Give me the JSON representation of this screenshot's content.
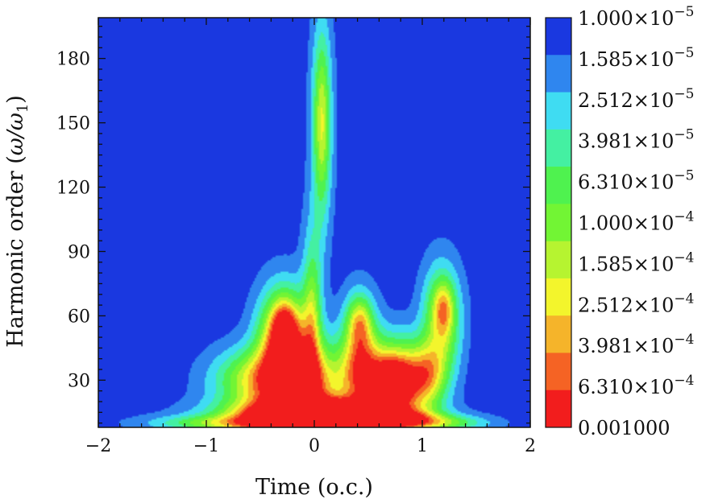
{
  "chart_data": {
    "type": "heatmap",
    "title": "",
    "xlabel": "Time (o.c.)",
    "ylabel_main": "Harmonic order (",
    "ylabel_math": "ω/ω",
    "ylabel_sub": "1",
    "ylabel_close": ")",
    "xlim": [
      -2,
      2
    ],
    "ylim": [
      8,
      199
    ],
    "x_ticks": [
      -2,
      -1,
      0,
      1,
      2
    ],
    "x_tick_labels": [
      "−2",
      "−1",
      "0",
      "1",
      "2"
    ],
    "y_ticks": [
      30,
      60,
      90,
      120,
      150,
      180
    ],
    "y_tick_labels": [
      "30",
      "60",
      "90",
      "120",
      "150",
      "180"
    ],
    "background_level": "1.000×10^-5",
    "colorbar": {
      "placement": "right",
      "levels": [
        {
          "mantissa": "1.000",
          "times": "×10",
          "exp": "−5",
          "color": "#1a38e0"
        },
        {
          "mantissa": "1.585",
          "times": "×10",
          "exp": "−5",
          "color": "#2f86ef"
        },
        {
          "mantissa": "2.512",
          "times": "×10",
          "exp": "−5",
          "color": "#3fdcf2"
        },
        {
          "mantissa": "3.981",
          "times": "×10",
          "exp": "−5",
          "color": "#44f0a2"
        },
        {
          "mantissa": "6.310",
          "times": "×10",
          "exp": "−5",
          "color": "#4ff24f"
        },
        {
          "mantissa": "1.000",
          "times": "×10",
          "exp": "−4",
          "color": "#72f534"
        },
        {
          "mantissa": "1.585",
          "times": "×10",
          "exp": "−4",
          "color": "#b6f430"
        },
        {
          "mantissa": "2.512",
          "times": "×10",
          "exp": "−4",
          "color": "#f3f52c"
        },
        {
          "mantissa": "3.981",
          "times": "×10",
          "exp": "−4",
          "color": "#f5b42a"
        },
        {
          "mantissa": "6.310",
          "times": "×10",
          "exp": "−4",
          "color": "#f56324"
        },
        {
          "mantissa": "0.001000",
          "times": "",
          "exp": "",
          "color": "#f21d1d"
        }
      ]
    },
    "features": [
      {
        "x": 0.07,
        "y": 150,
        "sx": 0.07,
        "sy": 34,
        "level": 0.42
      },
      {
        "x": 0.07,
        "y": 150,
        "sx": 0.045,
        "sy": 24,
        "level": 0.25
      },
      {
        "x": -0.02,
        "y": 68,
        "sx": 0.07,
        "sy": 28,
        "level": 0.3
      },
      {
        "x": -0.02,
        "y": 55,
        "sx": 0.05,
        "sy": 20,
        "level": 0.2
      },
      {
        "x": -0.28,
        "y": 50,
        "sx": 0.16,
        "sy": 16,
        "level": 0.9
      },
      {
        "x": -0.28,
        "y": 55,
        "sx": 0.08,
        "sy": 8,
        "level": 0.4
      },
      {
        "x": -0.1,
        "y": 28,
        "sx": 0.28,
        "sy": 14,
        "level": 0.9
      },
      {
        "x": -0.08,
        "y": 27,
        "sx": 0.06,
        "sy": 6,
        "level": 0.4
      },
      {
        "x": 0.42,
        "y": 40,
        "sx": 0.12,
        "sy": 18,
        "level": 0.65
      },
      {
        "x": 0.42,
        "y": 58,
        "sx": 0.08,
        "sy": 8,
        "level": 0.4
      },
      {
        "x": 0.75,
        "y": 30,
        "sx": 0.22,
        "sy": 13,
        "level": 1.0
      },
      {
        "x": 0.72,
        "y": 28,
        "sx": 0.11,
        "sy": 7,
        "level": 0.55
      },
      {
        "x": 1.18,
        "y": 58,
        "sx": 0.12,
        "sy": 17,
        "level": 0.65
      },
      {
        "x": 1.2,
        "y": 64,
        "sx": 0.06,
        "sy": 8,
        "level": 0.3
      },
      {
        "x": 1.05,
        "y": 32,
        "sx": 0.12,
        "sy": 10,
        "level": 0.45
      },
      {
        "x": -0.55,
        "y": 30,
        "sx": 0.28,
        "sy": 10,
        "level": 0.55
      },
      {
        "x": 0.0,
        "y": 12,
        "sx": 0.55,
        "sy": 6,
        "level": 1.3
      },
      {
        "x": 0.0,
        "y": 14,
        "sx": 0.3,
        "sy": 3.5,
        "level": 1.0
      },
      {
        "x": 0.75,
        "y": 12,
        "sx": 0.3,
        "sy": 3,
        "level": 0.5
      },
      {
        "x": -0.9,
        "y": 10,
        "sx": 0.45,
        "sy": 2.5,
        "level": 0.35
      },
      {
        "x": 1.2,
        "y": 10,
        "sx": 0.3,
        "sy": 2.5,
        "level": 0.35
      }
    ]
  }
}
